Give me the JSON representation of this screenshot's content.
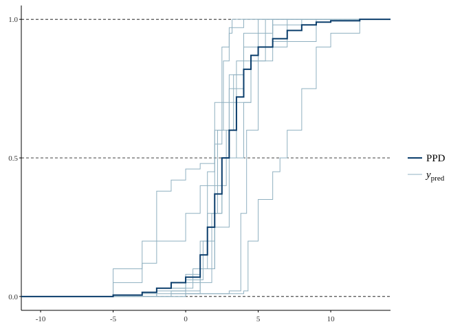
{
  "chart_data": {
    "type": "line",
    "step": true,
    "xlim": [
      -11.33,
      14.12
    ],
    "xticks": [
      -10,
      -5,
      0,
      5,
      10
    ],
    "ylim": [
      -0.05,
      1.05
    ],
    "yticks": [
      {
        "value": 0,
        "label": "0.0"
      },
      {
        "value": 0.5,
        "label": "0.5"
      },
      {
        "value": 1,
        "label": "1.0"
      }
    ],
    "grid": "dashed-y",
    "legend": "right",
    "series": [
      {
        "name": "y_pred",
        "color": "#8fb0c0",
        "x": [
          -11.33,
          -5,
          -3,
          -2,
          -1,
          0,
          1,
          2,
          2.5,
          3,
          4,
          5,
          6,
          8,
          14.12
        ],
        "values": [
          0,
          0.1,
          0.2,
          0.38,
          0.42,
          0.46,
          0.48,
          0.55,
          0.7,
          0.8,
          0.9,
          0.95,
          0.98,
          1,
          1
        ]
      },
      {
        "name": "y_pred",
        "color": "#8fb0c0",
        "x": [
          -11.33,
          -5,
          -3,
          -2,
          0,
          1,
          2,
          3,
          4,
          5,
          7,
          14.12
        ],
        "values": [
          0,
          0.05,
          0.12,
          0.2,
          0.3,
          0.4,
          0.6,
          0.75,
          0.85,
          0.9,
          1,
          1
        ]
      },
      {
        "name": "y_pred",
        "color": "#8fb0c0",
        "x": [
          -11.33,
          0,
          4,
          4.3,
          5,
          6,
          6.5,
          7,
          8,
          9,
          10,
          12,
          14.12
        ],
        "values": [
          0,
          0.01,
          0.02,
          0.2,
          0.35,
          0.45,
          0.5,
          0.6,
          0.75,
          0.9,
          0.95,
          1,
          1
        ]
      },
      {
        "name": "y_pred",
        "color": "#8fb0c0",
        "x": [
          -11.33,
          0,
          3,
          3.8,
          4.2,
          5,
          6,
          14.12
        ],
        "values": [
          0,
          0.01,
          0.02,
          0.3,
          0.6,
          0.9,
          1,
          1
        ]
      },
      {
        "name": "y_pred",
        "color": "#8fb0c0",
        "x": [
          -11.33,
          -2,
          0,
          1,
          1.5,
          2,
          2.5,
          3,
          4,
          14.12
        ],
        "values": [
          0,
          0.02,
          0.08,
          0.2,
          0.45,
          0.7,
          0.9,
          0.97,
          1,
          1
        ]
      },
      {
        "name": "y_pred",
        "color": "#8fb0c0",
        "x": [
          -11.33,
          -1,
          1,
          2,
          2.5,
          3,
          3.5,
          4,
          5,
          14.12
        ],
        "values": [
          0,
          0.02,
          0.1,
          0.3,
          0.5,
          0.7,
          0.85,
          0.95,
          1,
          1
        ]
      },
      {
        "name": "y_pred",
        "color": "#8fb0c0",
        "x": [
          -11.33,
          -2,
          0,
          1.2,
          2,
          2.8,
          3.3,
          4,
          6,
          14.12
        ],
        "values": [
          0,
          0.03,
          0.06,
          0.2,
          0.4,
          0.6,
          0.8,
          0.9,
          1,
          1
        ]
      },
      {
        "name": "y_pred",
        "color": "#8fb0c0",
        "x": [
          -11.33,
          -1,
          1,
          1.8,
          2.2,
          2.6,
          3,
          3.2,
          3.6,
          14.12
        ],
        "values": [
          0,
          0.01,
          0.05,
          0.3,
          0.6,
          0.85,
          0.95,
          1,
          1,
          1
        ]
      },
      {
        "name": "y_pred",
        "color": "#8fb0c0",
        "x": [
          -11.33,
          -3,
          0,
          1,
          2,
          3,
          4,
          4.5,
          5.5,
          14.12
        ],
        "values": [
          0,
          0.01,
          0.05,
          0.1,
          0.25,
          0.5,
          0.7,
          0.85,
          1,
          1
        ]
      },
      {
        "name": "y_pred",
        "color": "#8fb0c0",
        "x": [
          -11.33,
          -2,
          0.5,
          1.5,
          2.5,
          3.5,
          4.5,
          6,
          9,
          14.12
        ],
        "values": [
          0,
          0.03,
          0.1,
          0.3,
          0.5,
          0.7,
          0.85,
          0.92,
          1,
          1
        ]
      },
      {
        "name": "PPD",
        "color": "#0a3d6b",
        "x": [
          -11.33,
          -5,
          -3,
          -2,
          -1,
          0,
          1,
          1.5,
          2,
          2.5,
          3,
          3.5,
          4,
          4.5,
          5,
          6,
          7,
          8,
          9,
          10,
          12,
          14.12
        ],
        "values": [
          0,
          0.005,
          0.015,
          0.03,
          0.05,
          0.07,
          0.15,
          0.25,
          0.37,
          0.5,
          0.6,
          0.72,
          0.82,
          0.87,
          0.9,
          0.93,
          0.96,
          0.98,
          0.99,
          0.995,
          1,
          1
        ]
      }
    ]
  }
}
